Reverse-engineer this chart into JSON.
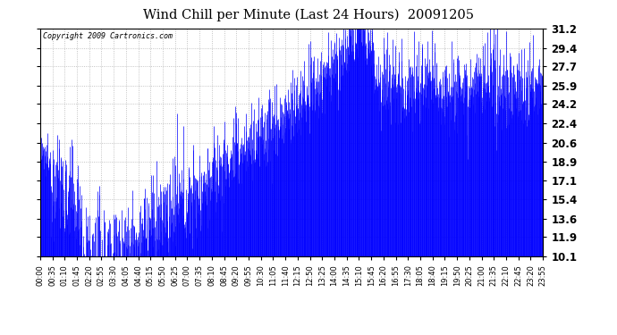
{
  "title": "Wind Chill per Minute (Last 24 Hours)  20091205",
  "copyright": "Copyright 2009 Cartronics.com",
  "yticks": [
    10.1,
    11.9,
    13.6,
    15.4,
    17.1,
    18.9,
    20.6,
    22.4,
    24.2,
    25.9,
    27.7,
    29.4,
    31.2
  ],
  "ymin": 10.1,
  "ymax": 31.2,
  "line_color": "#0000ff",
  "bg_color": "#ffffff",
  "plot_bg_color": "#ffffff",
  "grid_color": "#aaaaaa",
  "title_color": "#000000",
  "copyright_color": "#000000",
  "x_tick_labels": [
    "00:00",
    "00:35",
    "01:10",
    "01:45",
    "02:20",
    "02:55",
    "03:30",
    "04:05",
    "04:40",
    "05:15",
    "05:50",
    "06:25",
    "07:00",
    "07:35",
    "08:10",
    "08:45",
    "09:20",
    "09:55",
    "10:30",
    "11:05",
    "11:40",
    "12:15",
    "12:50",
    "13:25",
    "14:00",
    "14:35",
    "15:10",
    "15:45",
    "16:20",
    "16:55",
    "17:30",
    "18:05",
    "18:40",
    "19:15",
    "19:50",
    "20:25",
    "21:00",
    "21:35",
    "22:10",
    "22:45",
    "23:20",
    "23:55"
  ],
  "seed": 12345
}
